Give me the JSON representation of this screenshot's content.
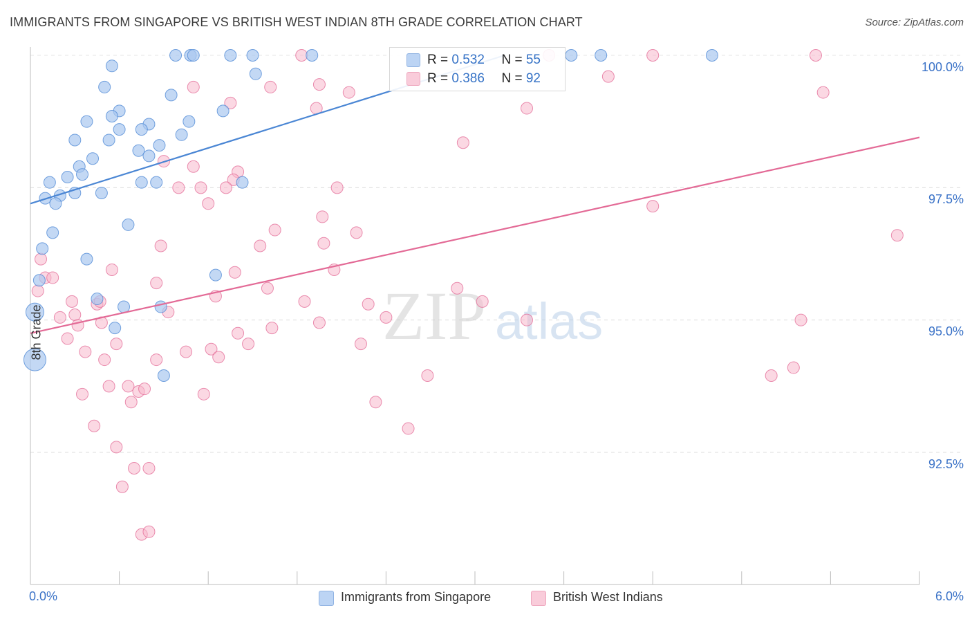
{
  "header": {
    "title": "IMMIGRANTS FROM SINGAPORE VS BRITISH WEST INDIAN 8TH GRADE CORRELATION CHART",
    "source": "Source: ZipAtlas.com"
  },
  "watermark": {
    "part1": "ZIP",
    "part2": "atlas"
  },
  "legend": {
    "rows": [
      {
        "r_label": "R = ",
        "r_value": "0.532",
        "n_label": "N = ",
        "n_value": "55",
        "color": "#a9c8f0"
      },
      {
        "r_label": "R = ",
        "r_value": "0.386",
        "n_label": "N = ",
        "n_value": "92",
        "color": "#f7b8cc"
      }
    ]
  },
  "bottom_legend": {
    "items": [
      {
        "label": "Immigrants from Singapore",
        "color": "#a9c8f0"
      },
      {
        "label": "British West Indians",
        "color": "#f7b8cc"
      }
    ]
  },
  "chart_data": {
    "type": "scatter",
    "title": "IMMIGRANTS FROM SINGAPORE VS BRITISH WEST INDIAN 8TH GRADE CORRELATION CHART",
    "xlabel": "",
    "ylabel": "8th Grade",
    "xlim": [
      0,
      6
    ],
    "ylim": [
      90,
      100.5
    ],
    "x_tick_labels": [
      "0.0%",
      "6.0%"
    ],
    "y_tick_labels": [
      "100.0%",
      "97.5%",
      "95.0%",
      "92.5%"
    ],
    "y_ticks": [
      100,
      97.5,
      95,
      92.5
    ],
    "grid": true,
    "series": [
      {
        "name": "Immigrants from Singapore",
        "color": "#4a86d4",
        "fill": "#a9c8f0",
        "r": 0.532,
        "n": 55,
        "trend": {
          "x": [
            0,
            3.2
          ],
          "y": [
            97.2,
            100
          ]
        },
        "points": [
          [
            0.98,
            100
          ],
          [
            1.08,
            100
          ],
          [
            1.1,
            100
          ],
          [
            1.35,
            100
          ],
          [
            1.5,
            100
          ],
          [
            1.9,
            100
          ],
          [
            3.65,
            100
          ],
          [
            3.85,
            100
          ],
          [
            4.6,
            100
          ],
          [
            0.55,
            99.8
          ],
          [
            1.52,
            99.65
          ],
          [
            0.5,
            99.4
          ],
          [
            0.95,
            99.25
          ],
          [
            0.6,
            98.95
          ],
          [
            1.3,
            98.95
          ],
          [
            0.55,
            98.85
          ],
          [
            0.38,
            98.75
          ],
          [
            0.8,
            98.7
          ],
          [
            1.07,
            98.75
          ],
          [
            0.6,
            98.6
          ],
          [
            0.75,
            98.6
          ],
          [
            1.02,
            98.5
          ],
          [
            0.3,
            98.4
          ],
          [
            0.53,
            98.4
          ],
          [
            0.87,
            98.3
          ],
          [
            0.73,
            98.2
          ],
          [
            0.8,
            98.1
          ],
          [
            0.42,
            98.05
          ],
          [
            0.33,
            97.9
          ],
          [
            0.35,
            97.75
          ],
          [
            0.25,
            97.7
          ],
          [
            0.13,
            97.6
          ],
          [
            0.75,
            97.6
          ],
          [
            0.85,
            97.6
          ],
          [
            1.43,
            97.6
          ],
          [
            0.3,
            97.4
          ],
          [
            0.2,
            97.35
          ],
          [
            0.48,
            97.4
          ],
          [
            0.1,
            97.3
          ],
          [
            0.17,
            97.2
          ],
          [
            0.66,
            96.8
          ],
          [
            0.15,
            96.65
          ],
          [
            0.08,
            96.35
          ],
          [
            0.38,
            96.15
          ],
          [
            1.25,
            95.85
          ],
          [
            0.06,
            95.75
          ],
          [
            0.45,
            95.4
          ],
          [
            0.63,
            95.25
          ],
          [
            0.88,
            95.25
          ],
          [
            0.03,
            95.15
          ],
          [
            0.57,
            94.85
          ],
          [
            0.9,
            93.95
          ],
          [
            0.03,
            94.25
          ]
        ],
        "point_sizes": [
          0,
          0,
          0,
          0,
          0,
          0,
          0,
          0,
          0,
          0,
          0,
          0,
          0,
          0,
          0,
          0,
          0,
          0,
          0,
          0,
          0,
          0,
          0,
          0,
          0,
          0,
          0,
          0,
          0,
          0,
          0,
          0,
          0,
          0,
          0,
          0,
          0,
          0,
          0,
          0,
          0,
          0,
          0,
          0,
          0,
          0,
          0,
          0,
          0,
          1,
          0,
          0,
          2
        ]
      },
      {
        "name": "British West Indians",
        "color": "#e36a96",
        "fill": "#f7b8cc",
        "r": 0.386,
        "n": 92,
        "trend": {
          "x": [
            0,
            6
          ],
          "y": [
            94.75,
            98.45
          ]
        },
        "points": [
          [
            1.83,
            100
          ],
          [
            3.5,
            100
          ],
          [
            4.2,
            100
          ],
          [
            5.3,
            100
          ],
          [
            3.9,
            99.6
          ],
          [
            1.1,
            99.4
          ],
          [
            1.62,
            99.4
          ],
          [
            1.95,
            99.45
          ],
          [
            2.15,
            99.3
          ],
          [
            5.35,
            99.3
          ],
          [
            1.35,
            99.1
          ],
          [
            1.93,
            99.0
          ],
          [
            3.35,
            99.0
          ],
          [
            2.92,
            98.35
          ],
          [
            0.9,
            98.0
          ],
          [
            1.1,
            97.9
          ],
          [
            1.4,
            97.8
          ],
          [
            1.37,
            97.65
          ],
          [
            1.0,
            97.5
          ],
          [
            1.15,
            97.5
          ],
          [
            1.32,
            97.5
          ],
          [
            2.07,
            97.5
          ],
          [
            1.2,
            97.2
          ],
          [
            4.2,
            97.15
          ],
          [
            1.97,
            96.95
          ],
          [
            1.65,
            96.7
          ],
          [
            2.2,
            96.65
          ],
          [
            5.85,
            96.6
          ],
          [
            0.88,
            96.4
          ],
          [
            1.55,
            96.4
          ],
          [
            1.98,
            96.45
          ],
          [
            0.07,
            96.15
          ],
          [
            0.55,
            95.95
          ],
          [
            1.38,
            95.9
          ],
          [
            2.05,
            95.95
          ],
          [
            0.1,
            95.8
          ],
          [
            0.15,
            95.8
          ],
          [
            0.85,
            95.7
          ],
          [
            1.25,
            95.45
          ],
          [
            1.6,
            95.6
          ],
          [
            2.88,
            95.6
          ],
          [
            3.05,
            95.35
          ],
          [
            0.05,
            95.55
          ],
          [
            0.28,
            95.35
          ],
          [
            0.3,
            95.1
          ],
          [
            0.45,
            95.3
          ],
          [
            0.47,
            95.35
          ],
          [
            1.85,
            95.35
          ],
          [
            2.28,
            95.3
          ],
          [
            0.2,
            95.05
          ],
          [
            0.32,
            94.9
          ],
          [
            0.48,
            94.95
          ],
          [
            0.93,
            95.15
          ],
          [
            1.63,
            94.85
          ],
          [
            1.95,
            94.95
          ],
          [
            3.35,
            95.0
          ],
          [
            5.2,
            95.0
          ],
          [
            2.4,
            95.05
          ],
          [
            0.25,
            94.65
          ],
          [
            0.58,
            94.55
          ],
          [
            1.4,
            94.75
          ],
          [
            1.47,
            94.55
          ],
          [
            2.23,
            94.55
          ],
          [
            0.37,
            94.4
          ],
          [
            1.05,
            94.4
          ],
          [
            1.22,
            94.45
          ],
          [
            0.5,
            94.25
          ],
          [
            0.85,
            94.25
          ],
          [
            1.27,
            94.3
          ],
          [
            5.0,
            93.95
          ],
          [
            5.15,
            94.1
          ],
          [
            2.68,
            93.95
          ],
          [
            0.53,
            93.75
          ],
          [
            0.66,
            93.75
          ],
          [
            0.73,
            93.65
          ],
          [
            0.77,
            93.7
          ],
          [
            0.35,
            93.6
          ],
          [
            1.17,
            93.6
          ],
          [
            0.68,
            93.45
          ],
          [
            2.33,
            93.45
          ],
          [
            0.43,
            93.0
          ],
          [
            2.55,
            92.95
          ],
          [
            0.58,
            92.6
          ],
          [
            0.7,
            92.2
          ],
          [
            0.8,
            92.2
          ],
          [
            0.62,
            91.85
          ],
          [
            0.75,
            90.95
          ],
          [
            0.8,
            91.0
          ]
        ]
      }
    ]
  }
}
